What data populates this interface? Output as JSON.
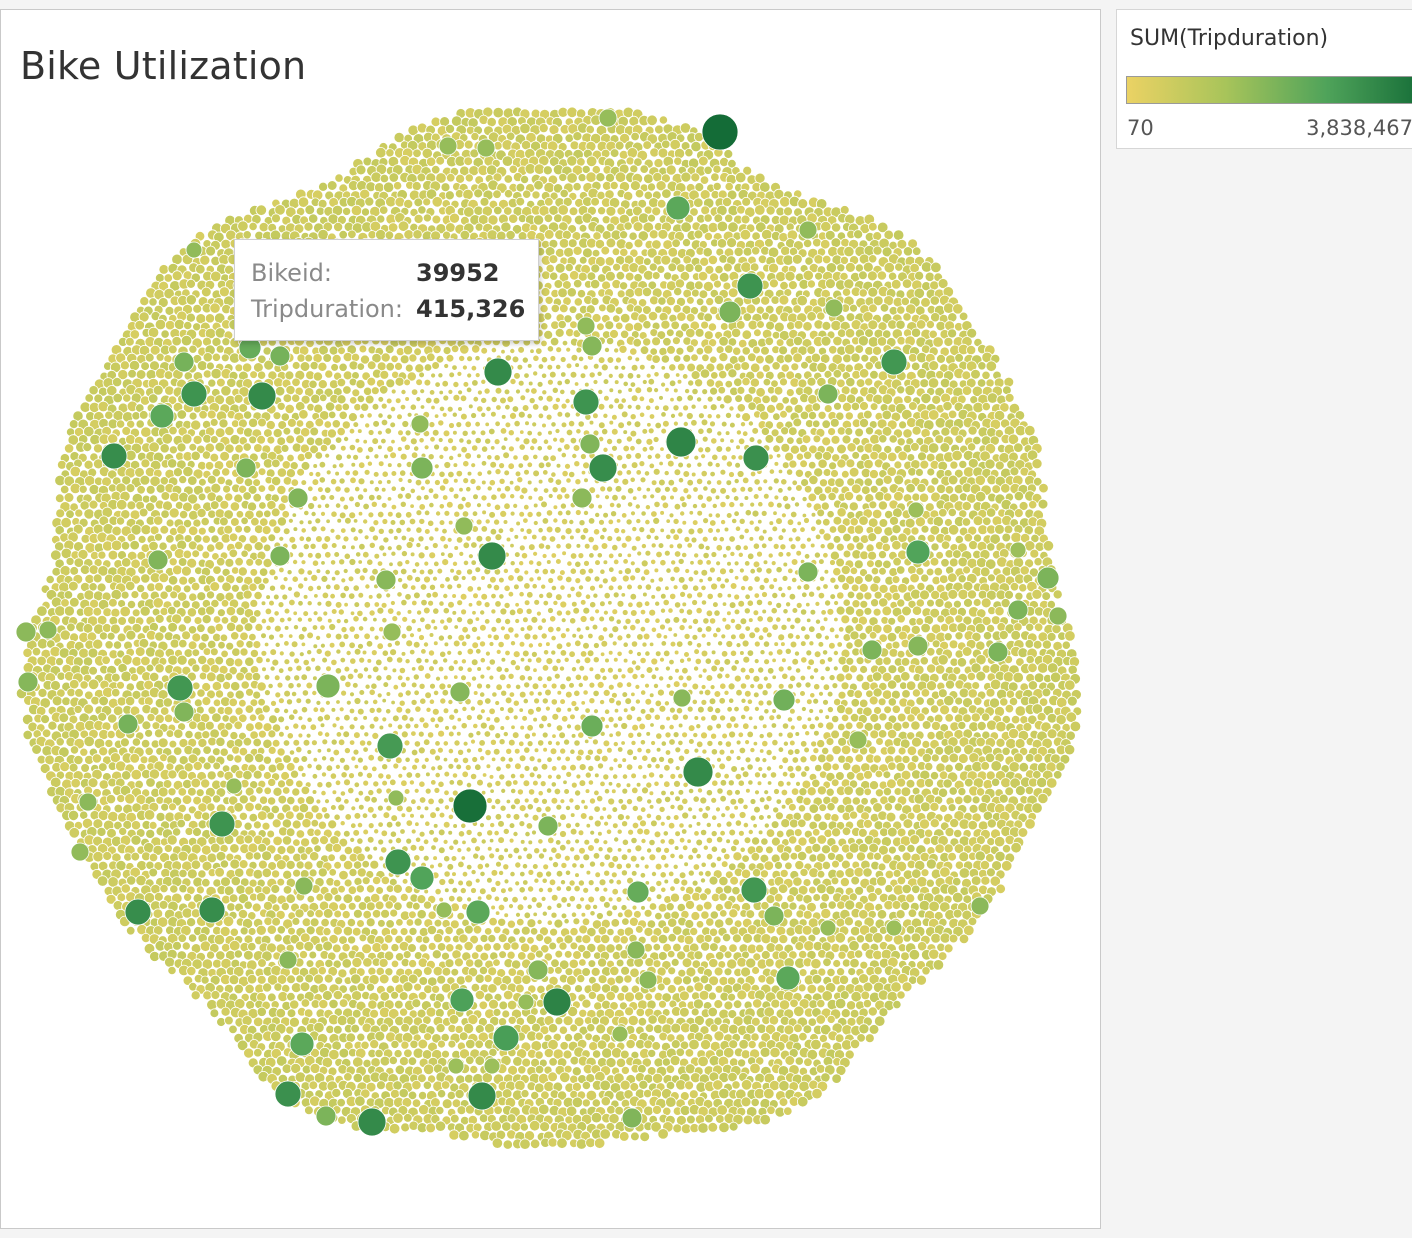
{
  "chart_data": {
    "type": "bubble",
    "title": "Bike Utilization",
    "size_field": "SUM(Tripduration)",
    "color_field": "SUM(Tripduration)",
    "color_range": {
      "min": 70,
      "max": 3838467
    },
    "color_ramp": [
      "#ebd264",
      "#a8c45a",
      "#4fa35a",
      "#146c37"
    ],
    "highlighted_bubble": {
      "Bikeid": "39952",
      "Tripduration": 415326
    }
  },
  "legend": {
    "title": "SUM(Tripduration)",
    "min_label": "70",
    "max_label": "3,838,467"
  },
  "tooltip": {
    "rows": [
      {
        "label": "Bikeid:",
        "value": "39952"
      },
      {
        "label": "Tripduration:",
        "value": "415,326"
      }
    ]
  }
}
